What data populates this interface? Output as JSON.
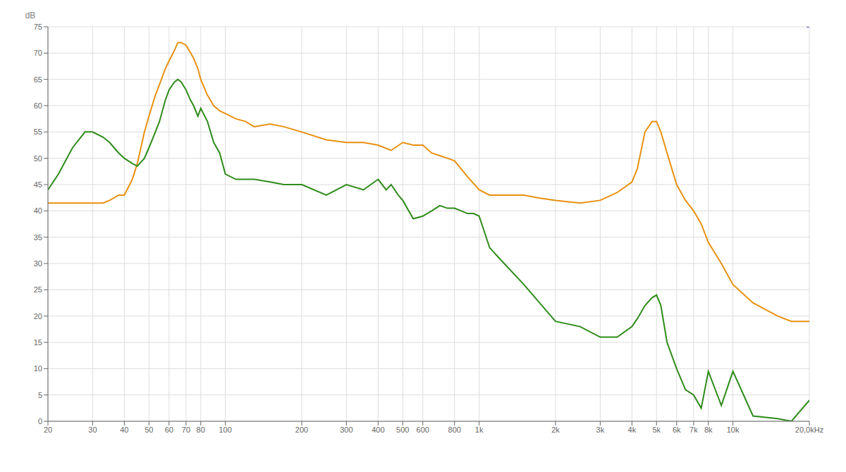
{
  "chart_data": {
    "type": "line",
    "title": "",
    "xlabel": "",
    "ylabel": "dB",
    "log": "x",
    "grid": true,
    "xlim": [
      20,
      20000
    ],
    "ylim": [
      0,
      75
    ],
    "yticks": [
      0,
      5,
      10,
      15,
      20,
      25,
      30,
      35,
      40,
      45,
      50,
      55,
      60,
      65,
      70,
      75
    ],
    "xticks": [
      20,
      30,
      40,
      50,
      60,
      70,
      80,
      100,
      200,
      300,
      400,
      500,
      600,
      800,
      {
        "value": 1000,
        "label": "1k"
      },
      {
        "value": 2000,
        "label": "2k"
      },
      {
        "value": 3000,
        "label": "3k"
      },
      {
        "value": 4000,
        "label": "4k"
      },
      {
        "value": 5000,
        "label": "5k"
      },
      {
        "value": 6000,
        "label": "6k"
      },
      {
        "value": 7000,
        "label": "7k"
      },
      {
        "value": 8000,
        "label": "8k"
      },
      {
        "value": 10000,
        "label": "10k"
      },
      {
        "value": 20000,
        "label": "20,0kHz"
      }
    ],
    "series": [
      {
        "color": "#E89010",
        "x": [
          20,
          22,
          25,
          28,
          30,
          33,
          35,
          38,
          40,
          43,
          45,
          48,
          50,
          53,
          55,
          58,
          60,
          63,
          65,
          67,
          70,
          73,
          75,
          78,
          80,
          85,
          90,
          95,
          100,
          110,
          120,
          130,
          150,
          170,
          200,
          250,
          300,
          350,
          400,
          450,
          500,
          550,
          600,
          650,
          700,
          750,
          800,
          900,
          1000,
          1100,
          1200,
          1500,
          1700,
          2000,
          2500,
          3000,
          3500,
          4000,
          4200,
          4500,
          4800,
          5000,
          5200,
          5500,
          6000,
          6500,
          7000,
          7500,
          8000,
          9000,
          10000,
          12000,
          15000,
          17000,
          20000
        ],
        "values": [
          41.5,
          41.5,
          41.5,
          41.5,
          41.5,
          41.5,
          42,
          43,
          43,
          46,
          49,
          55,
          58,
          62,
          64,
          67,
          68.5,
          70.5,
          72,
          72,
          71.5,
          70,
          69,
          67,
          65,
          62,
          60,
          59,
          58.5,
          57.5,
          57,
          56,
          56.5,
          56,
          55,
          53.5,
          53,
          53,
          52.5,
          51.5,
          53,
          52.5,
          52.5,
          51,
          50.5,
          50,
          49.5,
          46.5,
          44,
          43,
          43,
          43,
          42.5,
          42,
          41.5,
          42,
          43.5,
          45.5,
          48,
          55,
          57,
          57,
          55,
          51,
          45,
          42,
          40,
          37.5,
          34,
          30,
          26,
          22.5,
          20,
          19,
          19
        ]
      },
      {
        "color": "#2E8B1A",
        "x": [
          20,
          22,
          25,
          28,
          30,
          33,
          35,
          38,
          40,
          43,
          45,
          48,
          50,
          53,
          55,
          58,
          60,
          63,
          65,
          67,
          70,
          73,
          75,
          78,
          80,
          85,
          90,
          95,
          100,
          110,
          120,
          130,
          150,
          170,
          200,
          250,
          300,
          350,
          400,
          430,
          450,
          480,
          500,
          550,
          600,
          650,
          700,
          750,
          800,
          850,
          900,
          950,
          1000,
          1100,
          1200,
          1500,
          2000,
          2500,
          3000,
          3500,
          4000,
          4200,
          4500,
          4800,
          5000,
          5200,
          5500,
          6000,
          6500,
          7000,
          7500,
          8000,
          9000,
          10000,
          12000,
          15000,
          17000,
          20000
        ],
        "values": [
          44,
          47,
          52,
          55,
          55,
          54,
          53,
          51,
          50,
          49,
          48.5,
          50,
          52,
          55,
          57,
          61,
          63,
          64.5,
          65,
          64.5,
          63,
          61,
          60,
          58,
          59.5,
          57,
          53,
          51,
          47,
          46,
          46,
          46,
          45.5,
          45,
          45,
          43,
          45,
          44,
          46,
          44,
          45,
          43,
          42,
          38.5,
          39,
          40,
          41,
          40.5,
          40.5,
          40,
          39.5,
          39.5,
          39,
          33,
          31,
          26,
          19,
          18,
          16,
          16,
          18,
          19.5,
          22,
          23.5,
          24,
          22,
          15,
          10,
          6,
          5,
          2.5,
          9.5,
          3,
          9.5,
          1,
          0.5,
          0,
          4
        ]
      },
      {
        "color": "#5555BB",
        "x": [
          19500,
          20000
        ],
        "values": [
          75,
          75
        ]
      }
    ]
  }
}
